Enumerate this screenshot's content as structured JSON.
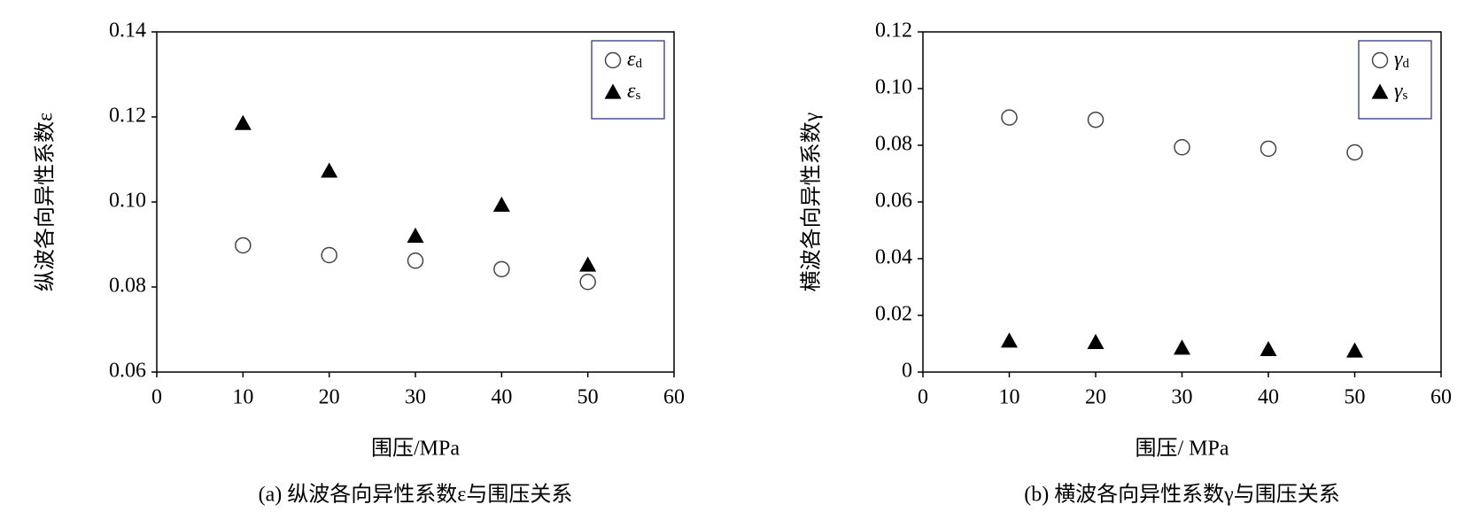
{
  "chart_data": [
    {
      "type": "scatter",
      "caption": "(a) 纵波各向异性系数ε与围压关系",
      "x_label": "围压/MPa",
      "y_label": "纵波各向异性系数ε",
      "x": [
        10,
        20,
        30,
        40,
        50
      ],
      "series": [
        {
          "name": "εd",
          "marker": "circle",
          "color": "#444444",
          "values": [
            0.0898,
            0.0875,
            0.0862,
            0.0842,
            0.0812
          ]
        },
        {
          "name": "εs",
          "marker": "triangle",
          "color": "#000000",
          "values": [
            0.1185,
            0.1073,
            0.092,
            0.0993,
            0.0852
          ]
        }
      ],
      "xlim": [
        0,
        60
      ],
      "xticks": [
        0,
        10,
        20,
        30,
        40,
        50,
        60
      ],
      "ylim": [
        0.06,
        0.14
      ],
      "yticks": [
        0.06,
        0.08,
        {
          "value": 0.1,
          "label": "0.10"
        },
        0.12,
        0.14
      ],
      "grid": false,
      "legend": "upper right",
      "legend_border": "#1f2a7a"
    },
    {
      "type": "scatter",
      "caption": "(b) 横波各向异性系数γ与围压关系",
      "x_label": "围压/ MPa",
      "y_label": "横波各向异性系数γ",
      "x": [
        10,
        20,
        30,
        40,
        50
      ],
      "series": [
        {
          "name": "γd",
          "marker": "circle",
          "color": "#444444",
          "values": [
            0.0898,
            0.089,
            0.0793,
            0.0788,
            0.0775
          ]
        },
        {
          "name": "γs",
          "marker": "triangle",
          "color": "#000000",
          "values": [
            0.011,
            0.0105,
            0.0085,
            0.008,
            0.0075
          ]
        }
      ],
      "xlim": [
        0,
        60
      ],
      "xticks": [
        0,
        10,
        20,
        30,
        40,
        50,
        60
      ],
      "ylim": [
        0,
        0.12
      ],
      "yticks": [
        0,
        0.02,
        0.04,
        0.06,
        0.08,
        {
          "value": 0.1,
          "label": "0.10"
        },
        0.12
      ],
      "grid": false,
      "legend": "upper right",
      "legend_border": "#1f2a7a"
    }
  ]
}
